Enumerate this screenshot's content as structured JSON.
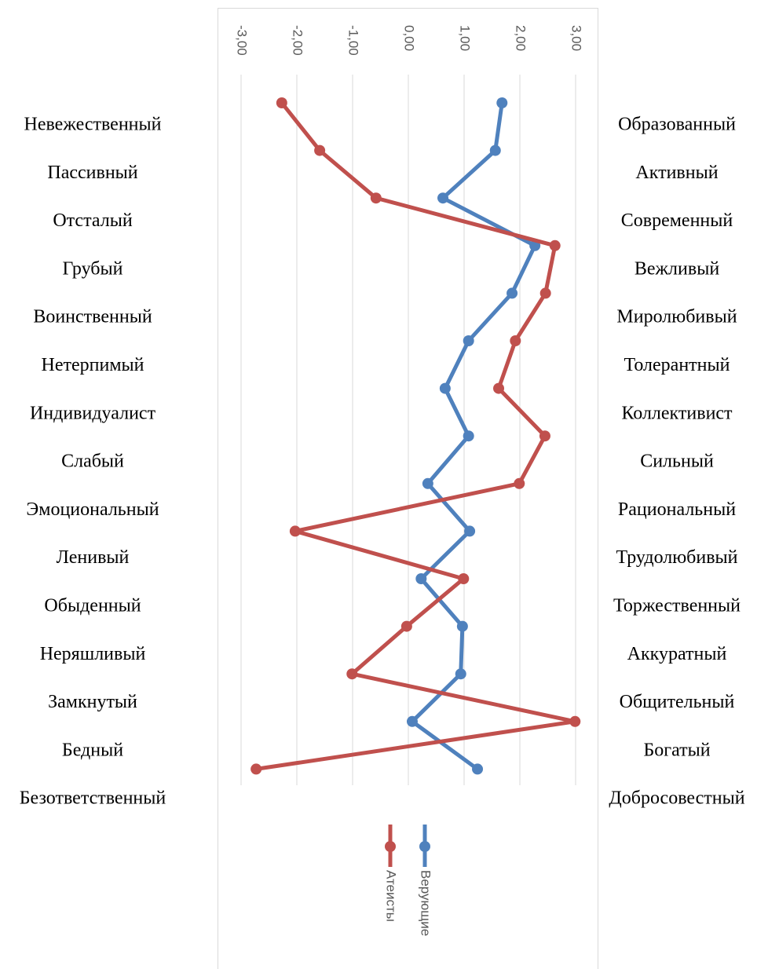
{
  "chart_data": {
    "type": "line",
    "categories": [
      "Невежественный",
      "Пассивный",
      "Отсталый",
      "Грубый",
      "Воинственный",
      "Нетерпимый",
      "Индивидуалист",
      "Слабый",
      "Эмоциональный",
      "Ленивый",
      "Обыденный",
      "Неряшливый",
      "Замкнутый",
      "Бедный",
      "Безответственный"
    ],
    "categories_right": [
      "Образованный",
      "Активный",
      "Современный",
      "Вежливый",
      "Миролюбивый",
      "Толерантный",
      "Коллективист",
      "Сильный",
      "Рациональный",
      "Трудолюбивый",
      "Торжественный",
      "Аккуратный",
      "Общительный",
      "Богатый",
      "Добросовестный"
    ],
    "series": [
      {
        "name": "Верующие",
        "color": "#4f81bd",
        "values": [
          1.68,
          1.56,
          0.62,
          2.27,
          1.86,
          1.08,
          0.66,
          1.08,
          0.35,
          1.1,
          0.23,
          0.97,
          0.94,
          0.07,
          1.24
        ]
      },
      {
        "name": "Атеисты",
        "color": "#c0504d",
        "values": [
          -2.27,
          -1.59,
          -0.58,
          2.63,
          2.46,
          1.92,
          1.62,
          2.45,
          1.99,
          -2.03,
          0.99,
          -0.03,
          -1.01,
          2.99,
          -2.73
        ]
      }
    ],
    "xlim": [
      -3,
      3
    ],
    "xticks": [
      {
        "value": -3,
        "label": "-3,00"
      },
      {
        "value": -2,
        "label": "-2,00"
      },
      {
        "value": -1,
        "label": "-1,00"
      },
      {
        "value": 0,
        "label": "0,00"
      },
      {
        "value": 1,
        "label": "1,00"
      },
      {
        "value": 2,
        "label": "2,00"
      },
      {
        "value": 3,
        "label": "3,00"
      }
    ],
    "grid": true
  }
}
